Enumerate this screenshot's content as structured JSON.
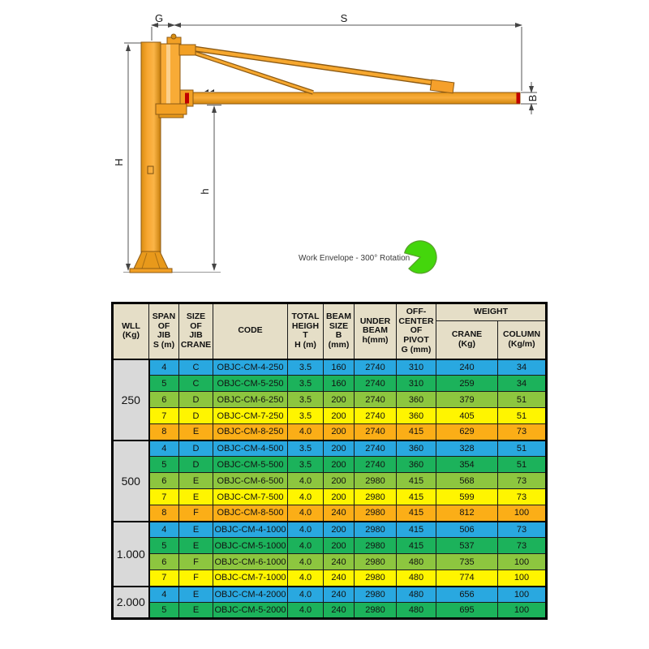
{
  "diagram": {
    "labels": {
      "offset_g": "G",
      "span_s": "S",
      "total_height_h": "H",
      "under_beam_h": "h",
      "beam_size_b": "B"
    },
    "work_envelope_label": "Work Envelope - 300° Rotation",
    "colors": {
      "crane_orange": "#F6A52E",
      "crane_orange_dark": "#D98E12",
      "crane_outline": "#8C5A14",
      "accent_red": "#C00000",
      "envelope_green": "#44D60C",
      "envelope_green_outline": "#57A02B"
    }
  },
  "table": {
    "headers": {
      "wll": "WLL\n(Kg)",
      "span": "SPAN\nOF\nJIB\nS (m)",
      "size": "SIZE\nOF\nJIB\nCRANE",
      "code": "CODE",
      "height": "TOTAL\nHEIGH\nT\nH (m)",
      "beam": "BEAM\nSIZE\nB\n(mm)",
      "under": "UNDER\nBEAM\nh(mm)",
      "pivot": "OFF-\nCENTER\nOF\nPIVOT\nG (mm)",
      "weight": "WEIGHT",
      "crane": "CRANE\n(Kg)",
      "column": "COLUMN\n(Kg/m)"
    },
    "row_colors": {
      "blue": "#29A8E0",
      "green": "#1CB25B",
      "light_green": "#8DC63F",
      "yellow": "#FFF500",
      "orange": "#FBAE17"
    },
    "groups": [
      {
        "wll": "250",
        "rows": [
          {
            "span": "4",
            "size": "C",
            "code": "OBJC-CM-4-250",
            "height": "3.5",
            "beam": "160",
            "under": "2740",
            "pivot": "310",
            "crane": "240",
            "column": "34",
            "color": "blue"
          },
          {
            "span": "5",
            "size": "C",
            "code": "OBJC-CM-5-250",
            "height": "3.5",
            "beam": "160",
            "under": "2740",
            "pivot": "310",
            "crane": "259",
            "column": "34",
            "color": "green"
          },
          {
            "span": "6",
            "size": "D",
            "code": "OBJC-CM-6-250",
            "height": "3.5",
            "beam": "200",
            "under": "2740",
            "pivot": "360",
            "crane": "379",
            "column": "51",
            "color": "light_green"
          },
          {
            "span": "7",
            "size": "D",
            "code": "OBJC-CM-7-250",
            "height": "3.5",
            "beam": "200",
            "under": "2740",
            "pivot": "360",
            "crane": "405",
            "column": "51",
            "color": "yellow"
          },
          {
            "span": "8",
            "size": "E",
            "code": "OBJC-CM-8-250",
            "height": "4.0",
            "beam": "200",
            "under": "2740",
            "pivot": "415",
            "crane": "629",
            "column": "73",
            "color": "orange"
          }
        ]
      },
      {
        "wll": "500",
        "rows": [
          {
            "span": "4",
            "size": "D",
            "code": "OBJC-CM-4-500",
            "height": "3.5",
            "beam": "200",
            "under": "2740",
            "pivot": "360",
            "crane": "328",
            "column": "51",
            "color": "blue"
          },
          {
            "span": "5",
            "size": "D",
            "code": "OBJC-CM-5-500",
            "height": "3.5",
            "beam": "200",
            "under": "2740",
            "pivot": "360",
            "crane": "354",
            "column": "51",
            "color": "green"
          },
          {
            "span": "6",
            "size": "E",
            "code": "OBJC-CM-6-500",
            "height": "4.0",
            "beam": "200",
            "under": "2980",
            "pivot": "415",
            "crane": "568",
            "column": "73",
            "color": "light_green"
          },
          {
            "span": "7",
            "size": "E",
            "code": "OBJC-CM-7-500",
            "height": "4.0",
            "beam": "200",
            "under": "2980",
            "pivot": "415",
            "crane": "599",
            "column": "73",
            "color": "yellow"
          },
          {
            "span": "8",
            "size": "F",
            "code": "OBJC-CM-8-500",
            "height": "4.0",
            "beam": "240",
            "under": "2980",
            "pivot": "415",
            "crane": "812",
            "column": "100",
            "color": "orange"
          }
        ]
      },
      {
        "wll": "1.000",
        "rows": [
          {
            "span": "4",
            "size": "E",
            "code": "OBJC-CM-4-1000",
            "height": "4.0",
            "beam": "200",
            "under": "2980",
            "pivot": "415",
            "crane": "506",
            "column": "73",
            "color": "blue"
          },
          {
            "span": "5",
            "size": "E",
            "code": "OBJC-CM-5-1000",
            "height": "4.0",
            "beam": "200",
            "under": "2980",
            "pivot": "415",
            "crane": "537",
            "column": "73",
            "color": "green"
          },
          {
            "span": "6",
            "size": "F",
            "code": "OBJC-CM-6-1000",
            "height": "4.0",
            "beam": "240",
            "under": "2980",
            "pivot": "480",
            "crane": "735",
            "column": "100",
            "color": "light_green"
          },
          {
            "span": "7",
            "size": "F",
            "code": "OBJC-CM-7-1000",
            "height": "4.0",
            "beam": "240",
            "under": "2980",
            "pivot": "480",
            "crane": "774",
            "column": "100",
            "color": "yellow"
          }
        ]
      },
      {
        "wll": "2.000",
        "rows": [
          {
            "span": "4",
            "size": "E",
            "code": "OBJC-CM-4-2000",
            "height": "4.0",
            "beam": "240",
            "under": "2980",
            "pivot": "480",
            "crane": "656",
            "column": "100",
            "color": "blue"
          },
          {
            "span": "5",
            "size": "E",
            "code": "OBJC-CM-5-2000",
            "height": "4.0",
            "beam": "240",
            "under": "2980",
            "pivot": "480",
            "crane": "695",
            "column": "100",
            "color": "green"
          }
        ]
      }
    ]
  }
}
